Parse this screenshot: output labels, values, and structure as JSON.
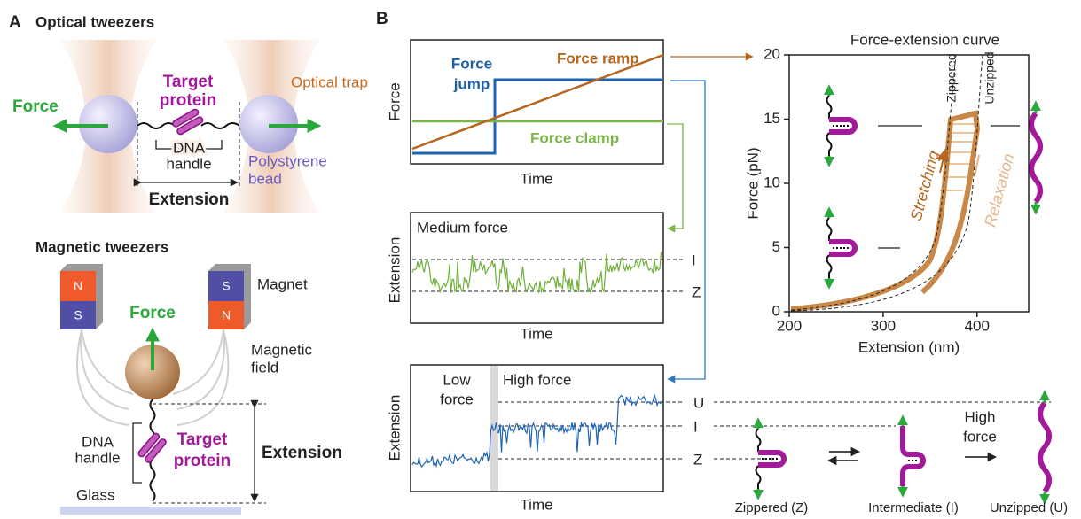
{
  "panel_a": {
    "label": "A",
    "optical": {
      "title": "Optical tweezers",
      "force": "Force",
      "target": [
        "Target",
        "protein"
      ],
      "trap": "Optical trap",
      "dna": [
        "DNA",
        "handle"
      ],
      "bead": [
        "Polystyrene",
        "bead"
      ],
      "extension": "Extension"
    },
    "magnetic": {
      "title": "Magnetic tweezers",
      "magnets": [
        [
          "N",
          "S"
        ],
        [
          "S",
          "N"
        ]
      ],
      "magnet": "Magnet",
      "force": "Force",
      "field": [
        "Magnetic",
        "field"
      ],
      "dna": [
        "DNA",
        "handle"
      ],
      "target": [
        "Target",
        "protein"
      ],
      "glass": "Glass",
      "extension": "Extension"
    }
  },
  "panel_b": {
    "label": "B",
    "protocols": {
      "ylabel": "Force",
      "xlabel": "Time",
      "jump": [
        "Force",
        "jump"
      ],
      "ramp": "Force ramp",
      "clamp": "Force clamp"
    },
    "medium": {
      "ylabel": "Extension",
      "xlabel": "Time",
      "title": "Medium force",
      "levels": [
        "I",
        "Z"
      ]
    },
    "jump_trace": {
      "ylabel": "Extension",
      "xlabel": "Time",
      "low": [
        "Low",
        "force"
      ],
      "high": "High force",
      "levels": [
        "U",
        "I",
        "Z"
      ]
    },
    "force_extension": {
      "title": "Force-extension curve",
      "xlabel": "Extension (nm)",
      "ylabel": "Force (pN)",
      "xlim": [
        200,
        455
      ],
      "ylim": [
        0,
        20
      ],
      "xticks": [
        200,
        300,
        400
      ],
      "yticks": [
        0,
        5,
        10,
        15,
        20
      ],
      "zippered": "Zippered",
      "unzipped": "Unzipped",
      "stretching": "Stretching",
      "relaxation": "Relaxation"
    },
    "states": {
      "zippered": "Zippered (Z)",
      "intermediate": "Intermediate (I)",
      "unzipped": "Unzipped (U)",
      "high_force": [
        "High",
        "force"
      ]
    }
  }
}
